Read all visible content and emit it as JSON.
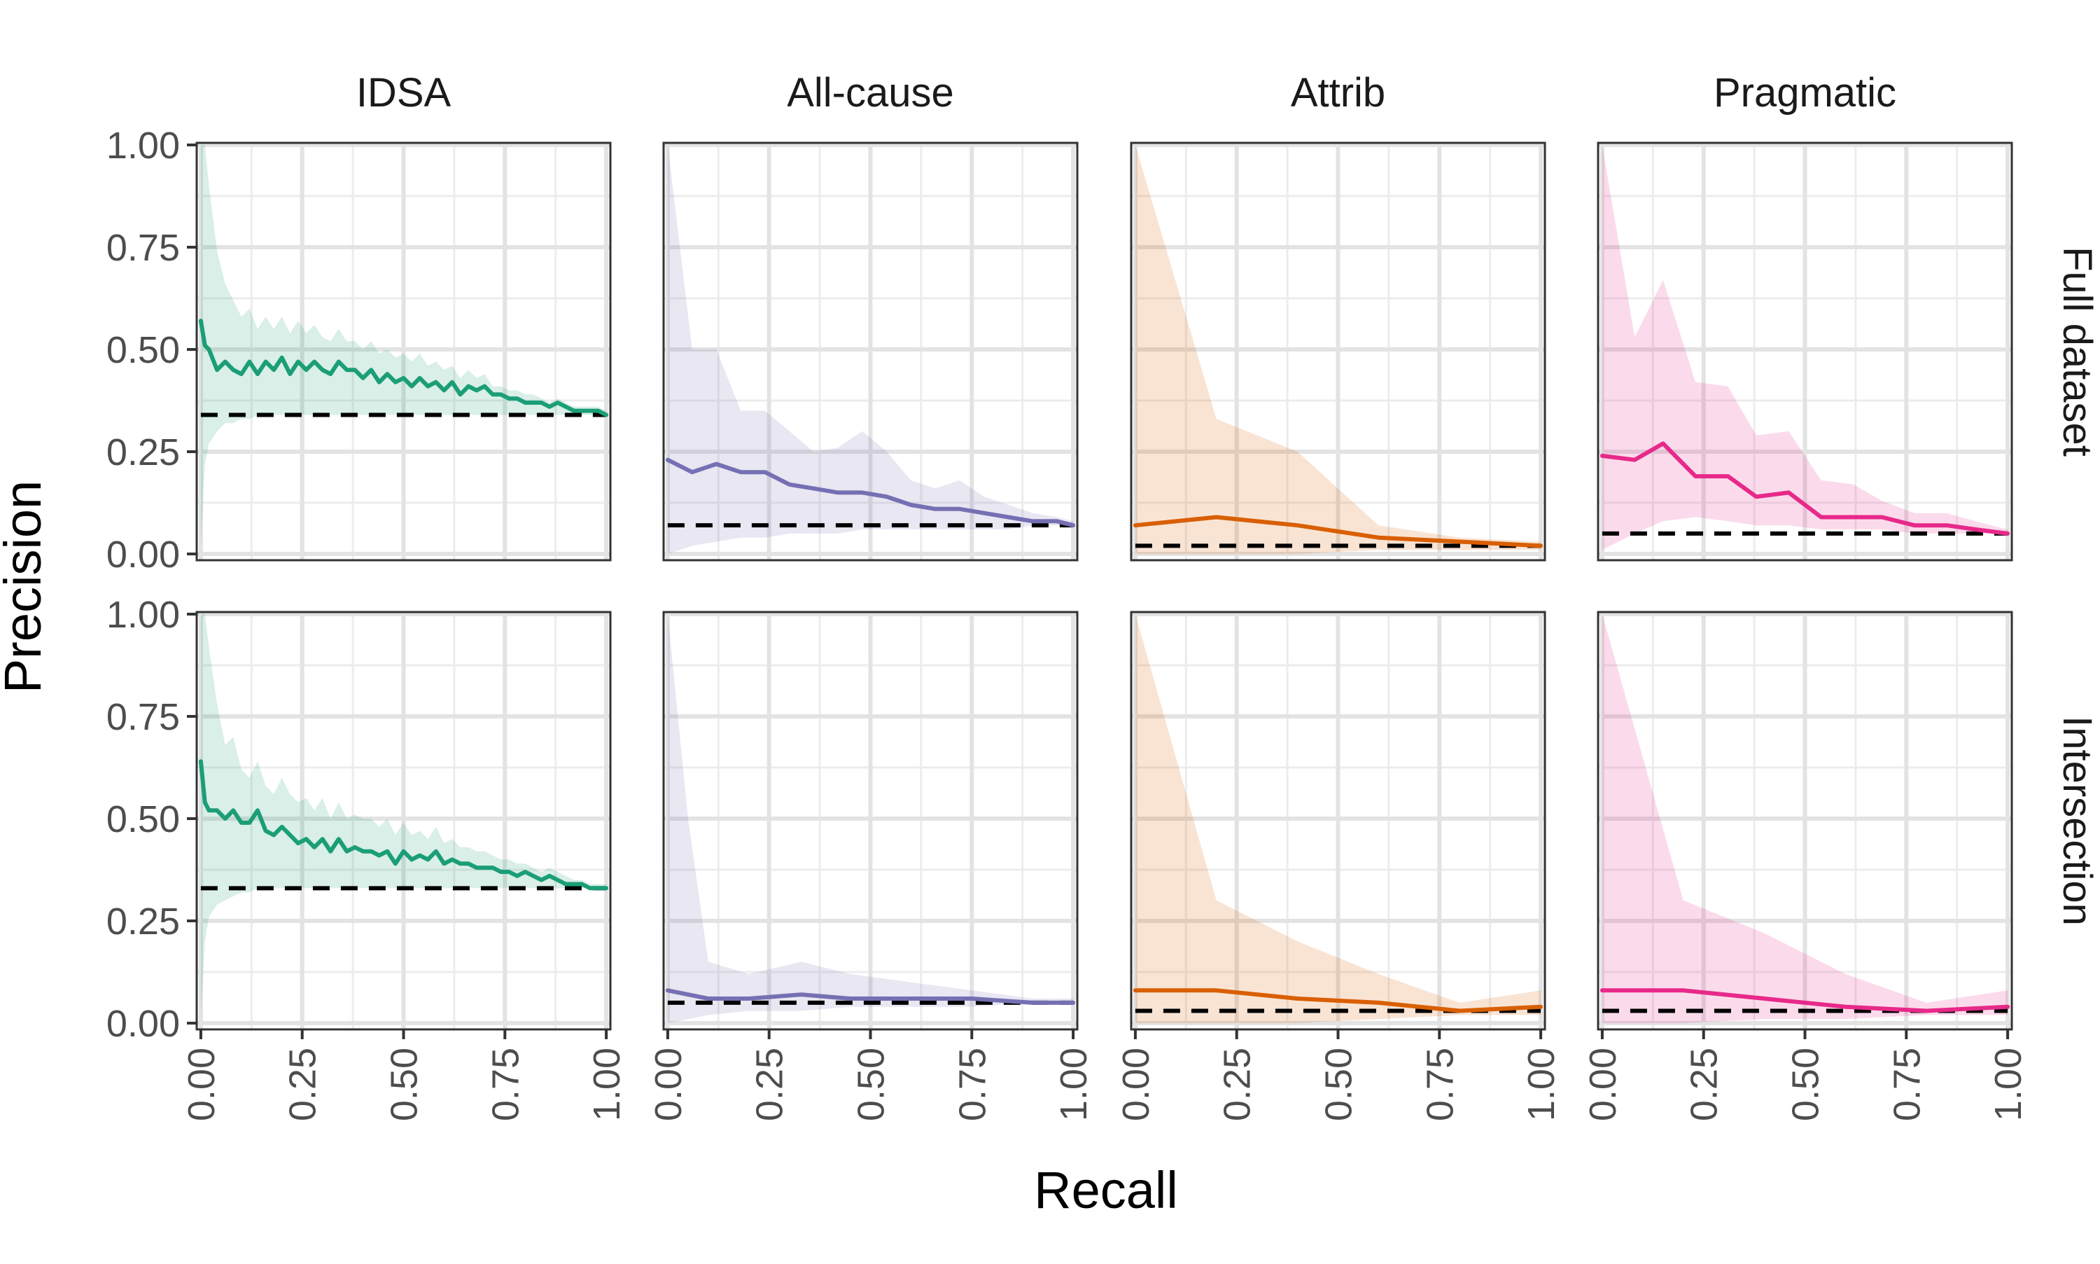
{
  "chart_data": {
    "type": "line",
    "xlabel": "Recall",
    "ylabel": "Precision",
    "columns": [
      "IDSA",
      "All-cause",
      "Attrib",
      "Pragmatic"
    ],
    "rows": [
      "Full dataset",
      "Intersection"
    ],
    "xlim": [
      0,
      1
    ],
    "ylim": [
      0,
      1
    ],
    "x_ticks": [
      "0.00",
      "0.25",
      "0.50",
      "0.75",
      "1.00"
    ],
    "y_ticks": [
      "0.00",
      "0.25",
      "0.50",
      "0.75",
      "1.00"
    ],
    "grid": true,
    "colors": {
      "IDSA": "#1b9e77",
      "All-cause": "#7570b3",
      "Attrib": "#d95f02",
      "Pragmatic": "#e7298a",
      "baseline": "#000000"
    },
    "panels": [
      {
        "row": "Full dataset",
        "col": "IDSA",
        "baseline": 0.34,
        "x": [
          0.0,
          0.01,
          0.02,
          0.04,
          0.06,
          0.08,
          0.1,
          0.12,
          0.14,
          0.16,
          0.18,
          0.2,
          0.22,
          0.24,
          0.26,
          0.28,
          0.3,
          0.32,
          0.34,
          0.36,
          0.38,
          0.4,
          0.42,
          0.44,
          0.46,
          0.48,
          0.5,
          0.52,
          0.54,
          0.56,
          0.58,
          0.6,
          0.62,
          0.64,
          0.66,
          0.68,
          0.7,
          0.72,
          0.74,
          0.76,
          0.78,
          0.8,
          0.82,
          0.84,
          0.86,
          0.88,
          0.9,
          0.92,
          0.94,
          0.96,
          0.98,
          1.0
        ],
        "y": [
          0.57,
          0.51,
          0.5,
          0.45,
          0.47,
          0.45,
          0.44,
          0.47,
          0.44,
          0.47,
          0.45,
          0.48,
          0.44,
          0.47,
          0.45,
          0.47,
          0.45,
          0.44,
          0.47,
          0.45,
          0.45,
          0.43,
          0.45,
          0.42,
          0.44,
          0.42,
          0.43,
          0.41,
          0.43,
          0.41,
          0.42,
          0.4,
          0.42,
          0.39,
          0.41,
          0.4,
          0.41,
          0.39,
          0.39,
          0.38,
          0.38,
          0.37,
          0.37,
          0.37,
          0.36,
          0.37,
          0.36,
          0.35,
          0.35,
          0.35,
          0.35,
          0.34
        ],
        "lower": [
          0.02,
          0.22,
          0.27,
          0.3,
          0.32,
          0.32,
          0.33,
          0.33,
          0.34,
          0.34,
          0.34,
          0.34,
          0.34,
          0.34,
          0.34,
          0.34,
          0.34,
          0.34,
          0.34,
          0.34,
          0.34,
          0.34,
          0.34,
          0.34,
          0.34,
          0.34,
          0.34,
          0.34,
          0.34,
          0.34,
          0.34,
          0.34,
          0.34,
          0.34,
          0.34,
          0.34,
          0.34,
          0.34,
          0.34,
          0.34,
          0.34,
          0.34,
          0.34,
          0.34,
          0.34,
          0.34,
          0.34,
          0.34,
          0.34,
          0.34,
          0.34,
          0.34
        ],
        "upper": [
          1.0,
          1.0,
          0.9,
          0.74,
          0.66,
          0.62,
          0.58,
          0.6,
          0.55,
          0.58,
          0.55,
          0.58,
          0.54,
          0.57,
          0.54,
          0.56,
          0.53,
          0.52,
          0.55,
          0.52,
          0.52,
          0.5,
          0.52,
          0.49,
          0.5,
          0.48,
          0.49,
          0.47,
          0.49,
          0.46,
          0.47,
          0.45,
          0.46,
          0.43,
          0.45,
          0.43,
          0.44,
          0.41,
          0.41,
          0.4,
          0.4,
          0.39,
          0.39,
          0.38,
          0.37,
          0.38,
          0.37,
          0.36,
          0.36,
          0.36,
          0.36,
          0.35
        ]
      },
      {
        "row": "Full dataset",
        "col": "All-cause",
        "baseline": 0.07,
        "x": [
          0.0,
          0.06,
          0.12,
          0.18,
          0.24,
          0.3,
          0.36,
          0.42,
          0.48,
          0.54,
          0.6,
          0.66,
          0.72,
          0.78,
          0.84,
          0.9,
          0.96,
          1.0
        ],
        "y": [
          0.23,
          0.2,
          0.22,
          0.2,
          0.2,
          0.17,
          0.16,
          0.15,
          0.15,
          0.14,
          0.12,
          0.11,
          0.11,
          0.1,
          0.09,
          0.08,
          0.08,
          0.07
        ],
        "lower": [
          0.0,
          0.02,
          0.03,
          0.04,
          0.04,
          0.05,
          0.05,
          0.05,
          0.06,
          0.06,
          0.06,
          0.06,
          0.06,
          0.06,
          0.06,
          0.07,
          0.07,
          0.07
        ],
        "upper": [
          1.0,
          0.5,
          0.5,
          0.35,
          0.35,
          0.3,
          0.25,
          0.26,
          0.3,
          0.25,
          0.18,
          0.16,
          0.18,
          0.14,
          0.12,
          0.1,
          0.09,
          0.08
        ]
      },
      {
        "row": "Full dataset",
        "col": "Attrib",
        "baseline": 0.02,
        "x": [
          0.0,
          0.2,
          0.4,
          0.6,
          0.8,
          1.0
        ],
        "y": [
          0.07,
          0.09,
          0.07,
          0.04,
          0.03,
          0.02
        ],
        "lower": [
          0.0,
          0.0,
          0.0,
          0.01,
          0.01,
          0.01
        ],
        "upper": [
          1.0,
          0.33,
          0.25,
          0.07,
          0.04,
          0.03
        ]
      },
      {
        "row": "Full dataset",
        "col": "Pragmatic",
        "baseline": 0.05,
        "x": [
          0.0,
          0.08,
          0.15,
          0.23,
          0.31,
          0.38,
          0.46,
          0.54,
          0.62,
          0.69,
          0.77,
          0.85,
          0.92,
          1.0
        ],
        "y": [
          0.24,
          0.23,
          0.27,
          0.19,
          0.19,
          0.14,
          0.15,
          0.09,
          0.09,
          0.09,
          0.07,
          0.07,
          0.06,
          0.05
        ],
        "lower": [
          0.01,
          0.05,
          0.08,
          0.09,
          0.08,
          0.07,
          0.07,
          0.06,
          0.06,
          0.06,
          0.05,
          0.05,
          0.05,
          0.05
        ],
        "upper": [
          1.0,
          0.53,
          0.67,
          0.42,
          0.41,
          0.29,
          0.3,
          0.18,
          0.17,
          0.13,
          0.1,
          0.1,
          0.08,
          0.06
        ]
      },
      {
        "row": "Intersection",
        "col": "IDSA",
        "baseline": 0.33,
        "x": [
          0.0,
          0.01,
          0.02,
          0.04,
          0.06,
          0.08,
          0.1,
          0.12,
          0.14,
          0.16,
          0.18,
          0.2,
          0.22,
          0.24,
          0.26,
          0.28,
          0.3,
          0.32,
          0.34,
          0.36,
          0.38,
          0.4,
          0.42,
          0.44,
          0.46,
          0.48,
          0.5,
          0.52,
          0.54,
          0.56,
          0.58,
          0.6,
          0.62,
          0.64,
          0.66,
          0.68,
          0.7,
          0.72,
          0.74,
          0.76,
          0.78,
          0.8,
          0.82,
          0.84,
          0.86,
          0.88,
          0.9,
          0.92,
          0.94,
          0.96,
          0.98,
          1.0
        ],
        "y": [
          0.64,
          0.54,
          0.52,
          0.52,
          0.5,
          0.52,
          0.49,
          0.49,
          0.52,
          0.47,
          0.46,
          0.48,
          0.46,
          0.44,
          0.45,
          0.43,
          0.45,
          0.42,
          0.45,
          0.42,
          0.43,
          0.42,
          0.42,
          0.41,
          0.42,
          0.39,
          0.42,
          0.4,
          0.41,
          0.4,
          0.42,
          0.39,
          0.4,
          0.39,
          0.39,
          0.38,
          0.38,
          0.38,
          0.37,
          0.37,
          0.36,
          0.37,
          0.36,
          0.35,
          0.36,
          0.35,
          0.34,
          0.34,
          0.34,
          0.33,
          0.33,
          0.33
        ],
        "lower": [
          0.02,
          0.2,
          0.26,
          0.29,
          0.3,
          0.31,
          0.32,
          0.32,
          0.33,
          0.33,
          0.33,
          0.33,
          0.33,
          0.33,
          0.33,
          0.33,
          0.33,
          0.33,
          0.33,
          0.33,
          0.33,
          0.33,
          0.33,
          0.33,
          0.33,
          0.33,
          0.33,
          0.33,
          0.33,
          0.33,
          0.33,
          0.33,
          0.33,
          0.33,
          0.33,
          0.33,
          0.33,
          0.33,
          0.33,
          0.33,
          0.33,
          0.33,
          0.33,
          0.33,
          0.33,
          0.33,
          0.33,
          0.33,
          0.33,
          0.33,
          0.33,
          0.33
        ],
        "upper": [
          1.0,
          1.0,
          0.92,
          0.78,
          0.68,
          0.7,
          0.62,
          0.6,
          0.64,
          0.58,
          0.56,
          0.6,
          0.56,
          0.54,
          0.55,
          0.52,
          0.55,
          0.5,
          0.54,
          0.5,
          0.51,
          0.5,
          0.5,
          0.48,
          0.5,
          0.46,
          0.49,
          0.46,
          0.47,
          0.45,
          0.48,
          0.44,
          0.45,
          0.43,
          0.43,
          0.42,
          0.42,
          0.41,
          0.4,
          0.4,
          0.39,
          0.39,
          0.38,
          0.37,
          0.38,
          0.37,
          0.36,
          0.35,
          0.35,
          0.34,
          0.34,
          0.34
        ]
      },
      {
        "row": "Intersection",
        "col": "All-cause",
        "baseline": 0.05,
        "x": [
          0.0,
          0.05,
          0.1,
          0.2,
          0.33,
          0.45,
          0.6,
          0.75,
          0.9,
          1.0
        ],
        "y": [
          0.08,
          0.07,
          0.06,
          0.06,
          0.07,
          0.06,
          0.06,
          0.06,
          0.05,
          0.05
        ],
        "lower": [
          0.0,
          0.01,
          0.02,
          0.03,
          0.03,
          0.04,
          0.04,
          0.04,
          0.05,
          0.05
        ],
        "upper": [
          1.0,
          0.5,
          0.15,
          0.12,
          0.15,
          0.12,
          0.1,
          0.08,
          0.06,
          0.06
        ]
      },
      {
        "row": "Intersection",
        "col": "Attrib",
        "baseline": 0.03,
        "x": [
          0.0,
          0.2,
          0.4,
          0.6,
          0.8,
          1.0
        ],
        "y": [
          0.08,
          0.08,
          0.06,
          0.05,
          0.03,
          0.04
        ],
        "lower": [
          0.0,
          0.0,
          0.0,
          0.01,
          0.02,
          0.02
        ],
        "upper": [
          1.0,
          0.3,
          0.2,
          0.12,
          0.05,
          0.08
        ]
      },
      {
        "row": "Intersection",
        "col": "Pragmatic",
        "baseline": 0.03,
        "x": [
          0.0,
          0.2,
          0.4,
          0.6,
          0.8,
          1.0
        ],
        "y": [
          0.08,
          0.08,
          0.06,
          0.04,
          0.03,
          0.04
        ],
        "lower": [
          0.0,
          0.0,
          0.01,
          0.01,
          0.02,
          0.02
        ],
        "upper": [
          1.0,
          0.3,
          0.22,
          0.12,
          0.05,
          0.08
        ]
      }
    ]
  }
}
